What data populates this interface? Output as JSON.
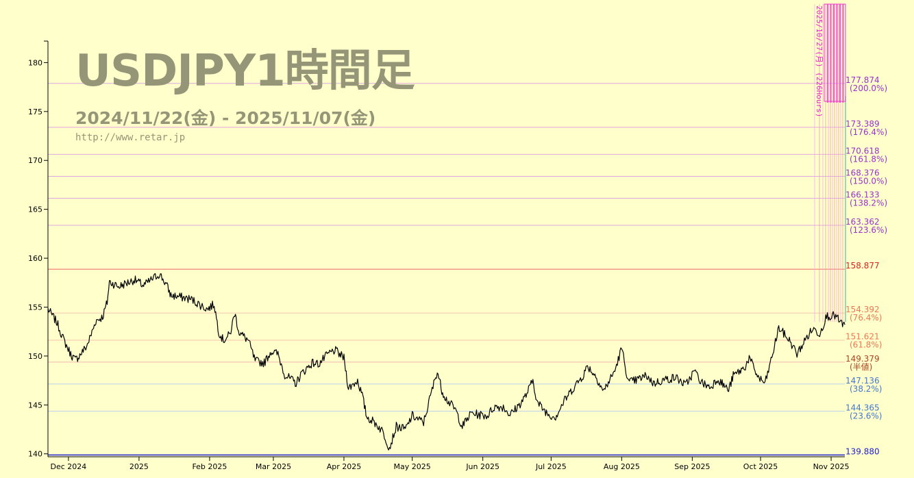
{
  "header": {
    "title": "USDJPY1時間足",
    "date_range": "2024/11/22(金) - 2025/11/07(金)",
    "url": "http://www.retar.jp"
  },
  "chart_data": {
    "type": "line",
    "ylim": [
      139.7,
      182.2
    ],
    "y_ticks": [
      140,
      145,
      150,
      155,
      160,
      165,
      170,
      175,
      180
    ],
    "x_range": [
      "2024-11-22",
      "2025-11-07"
    ],
    "x_ticks": [
      {
        "label": "Dec 2024",
        "date": "2024-12-01"
      },
      {
        "label": "2025",
        "date": "2025-01-01"
      },
      {
        "label": "Feb 2025",
        "date": "2025-02-01"
      },
      {
        "label": "Mar 2025",
        "date": "2025-03-01"
      },
      {
        "label": "Apr 2025",
        "date": "2025-04-01"
      },
      {
        "label": "May 2025",
        "date": "2025-05-01"
      },
      {
        "label": "Jun 2025",
        "date": "2025-06-01"
      },
      {
        "label": "Jul 2025",
        "date": "2025-07-01"
      },
      {
        "label": "Aug 2025",
        "date": "2025-08-01"
      },
      {
        "label": "Sep 2025",
        "date": "2025-09-01"
      },
      {
        "label": "Oct 2025",
        "date": "2025-10-01"
      },
      {
        "label": "Nov 2025",
        "date": "2025-11-01"
      }
    ],
    "grid": false,
    "levels": [
      {
        "value": 177.874,
        "price": "177.874",
        "pct": "(200.0%)",
        "color": "#9933cc",
        "line": "#e0a8e0"
      },
      {
        "value": 173.389,
        "price": "173.389",
        "pct": "(176.4%)",
        "color": "#9933cc",
        "line": "#e0a8e0"
      },
      {
        "value": 170.618,
        "price": "170.618",
        "pct": "(161.8%)",
        "color": "#9933cc",
        "line": "#e0a8e0"
      },
      {
        "value": 168.376,
        "price": "168.376",
        "pct": "(150.0%)",
        "color": "#9933cc",
        "line": "#e0a8e0"
      },
      {
        "value": 166.133,
        "price": "166.133",
        "pct": "(138.2%)",
        "color": "#9933cc",
        "line": "#e0a8e0"
      },
      {
        "value": 163.362,
        "price": "163.362",
        "pct": "(123.6%)",
        "color": "#9933cc",
        "line": "#e0a8e0"
      },
      {
        "value": 158.877,
        "price": "158.877",
        "pct": "",
        "color": "#dd2222",
        "line": "#ee6666"
      },
      {
        "value": 154.392,
        "price": "154.392",
        "pct": "(76.4%)",
        "color": "#ee7755",
        "line": "#f5c4b0"
      },
      {
        "value": 151.621,
        "price": "151.621",
        "pct": "(61.8%)",
        "color": "#ee7755",
        "line": "#f5c4b0"
      },
      {
        "value": 149.379,
        "price": "149.379",
        "pct": "(半値)",
        "color": "#aa4422",
        "line": "#f0b8b0"
      },
      {
        "value": 147.136,
        "price": "147.136",
        "pct": "(38.2%)",
        "color": "#4477cc",
        "line": "#bbd0ee"
      },
      {
        "value": 144.365,
        "price": "144.365",
        "pct": "(23.6%)",
        "color": "#4477cc",
        "line": "#bbd0ee"
      },
      {
        "value": 139.88,
        "price": "139.880",
        "pct": "",
        "color": "#2222cc",
        "line": "#2222cc"
      }
    ],
    "time_cycle_label": "2025/10/27(月) (226Hours)",
    "series": [
      {
        "values": [
          [
            "2024-11-22",
            154.8
          ],
          [
            "2024-11-26",
            153.4
          ],
          [
            "2024-11-29",
            151.6
          ],
          [
            "2024-12-02",
            150.2
          ],
          [
            "2024-12-04",
            149.6
          ],
          [
            "2024-12-06",
            150.1
          ],
          [
            "2024-12-09",
            151.0
          ],
          [
            "2024-12-11",
            152.2
          ],
          [
            "2024-12-13",
            153.6
          ],
          [
            "2024-12-16",
            154.0
          ],
          [
            "2024-12-18",
            155.5
          ],
          [
            "2024-12-19",
            157.6
          ],
          [
            "2024-12-23",
            157.1
          ],
          [
            "2024-12-26",
            157.4
          ],
          [
            "2024-12-30",
            157.8
          ],
          [
            "2025-01-03",
            157.2
          ],
          [
            "2025-01-07",
            157.9
          ],
          [
            "2025-01-10",
            158.4
          ],
          [
            "2025-01-13",
            157.3
          ],
          [
            "2025-01-15",
            156.2
          ],
          [
            "2025-01-20",
            156.0
          ],
          [
            "2025-01-24",
            155.8
          ],
          [
            "2025-01-28",
            155.2
          ],
          [
            "2025-01-31",
            154.8
          ],
          [
            "2025-02-03",
            155.3
          ],
          [
            "2025-02-05",
            152.5
          ],
          [
            "2025-02-07",
            151.6
          ],
          [
            "2025-02-10",
            152.2
          ],
          [
            "2025-02-12",
            154.4
          ],
          [
            "2025-02-14",
            152.4
          ],
          [
            "2025-02-18",
            151.6
          ],
          [
            "2025-02-21",
            149.5
          ],
          [
            "2025-02-25",
            149.3
          ],
          [
            "2025-02-28",
            150.5
          ],
          [
            "2025-03-03",
            150.2
          ],
          [
            "2025-03-06",
            148.1
          ],
          [
            "2025-03-11",
            147.2
          ],
          [
            "2025-03-13",
            148.1
          ],
          [
            "2025-03-18",
            149.3
          ],
          [
            "2025-03-21",
            149.2
          ],
          [
            "2025-03-25",
            150.2
          ],
          [
            "2025-03-28",
            150.6
          ],
          [
            "2025-04-01",
            149.8
          ],
          [
            "2025-04-03",
            146.7
          ],
          [
            "2025-04-07",
            147.5
          ],
          [
            "2025-04-09",
            146.0
          ],
          [
            "2025-04-11",
            143.8
          ],
          [
            "2025-04-15",
            143.1
          ],
          [
            "2025-04-18",
            142.3
          ],
          [
            "2025-04-21",
            140.6
          ],
          [
            "2025-04-24",
            142.8
          ],
          [
            "2025-04-28",
            142.5
          ],
          [
            "2025-05-01",
            143.9
          ],
          [
            "2025-05-06",
            143.2
          ],
          [
            "2025-05-09",
            145.9
          ],
          [
            "2025-05-12",
            148.5
          ],
          [
            "2025-05-14",
            146.5
          ],
          [
            "2025-05-16",
            145.6
          ],
          [
            "2025-05-20",
            144.5
          ],
          [
            "2025-05-23",
            142.8
          ],
          [
            "2025-05-27",
            144.2
          ],
          [
            "2025-05-30",
            144.0
          ],
          [
            "2025-06-03",
            143.9
          ],
          [
            "2025-06-06",
            144.8
          ],
          [
            "2025-06-10",
            144.8
          ],
          [
            "2025-06-13",
            144.0
          ],
          [
            "2025-06-17",
            145.0
          ],
          [
            "2025-06-20",
            146.0
          ],
          [
            "2025-06-23",
            147.5
          ],
          [
            "2025-06-25",
            145.2
          ],
          [
            "2025-06-30",
            144.0
          ],
          [
            "2025-07-03",
            143.8
          ],
          [
            "2025-07-07",
            145.5
          ],
          [
            "2025-07-10",
            146.5
          ],
          [
            "2025-07-15",
            148.0
          ],
          [
            "2025-07-17",
            149.0
          ],
          [
            "2025-07-21",
            147.8
          ],
          [
            "2025-07-24",
            146.4
          ],
          [
            "2025-07-29",
            148.5
          ],
          [
            "2025-08-01",
            150.8
          ],
          [
            "2025-08-04",
            147.3
          ],
          [
            "2025-08-07",
            147.5
          ],
          [
            "2025-08-12",
            148.0
          ],
          [
            "2025-08-15",
            147.2
          ],
          [
            "2025-08-20",
            147.6
          ],
          [
            "2025-08-25",
            147.8
          ],
          [
            "2025-08-29",
            147.0
          ],
          [
            "2025-09-02",
            148.5
          ],
          [
            "2025-09-05",
            147.3
          ],
          [
            "2025-09-09",
            146.8
          ],
          [
            "2025-09-12",
            147.7
          ],
          [
            "2025-09-17",
            146.5
          ],
          [
            "2025-09-19",
            148.0
          ],
          [
            "2025-09-24",
            148.8
          ],
          [
            "2025-09-26",
            149.8
          ],
          [
            "2025-09-30",
            147.8
          ],
          [
            "2025-10-03",
            147.2
          ],
          [
            "2025-10-06",
            149.9
          ],
          [
            "2025-10-09",
            152.9
          ],
          [
            "2025-10-14",
            151.5
          ],
          [
            "2025-10-17",
            150.2
          ],
          [
            "2025-10-21",
            151.8
          ],
          [
            "2025-10-24",
            152.8
          ],
          [
            "2025-10-27",
            152.3
          ],
          [
            "2025-10-30",
            154.1
          ],
          [
            "2025-11-03",
            154.1
          ],
          [
            "2025-11-05",
            153.4
          ],
          [
            "2025-11-07",
            153.2
          ]
        ]
      }
    ]
  }
}
